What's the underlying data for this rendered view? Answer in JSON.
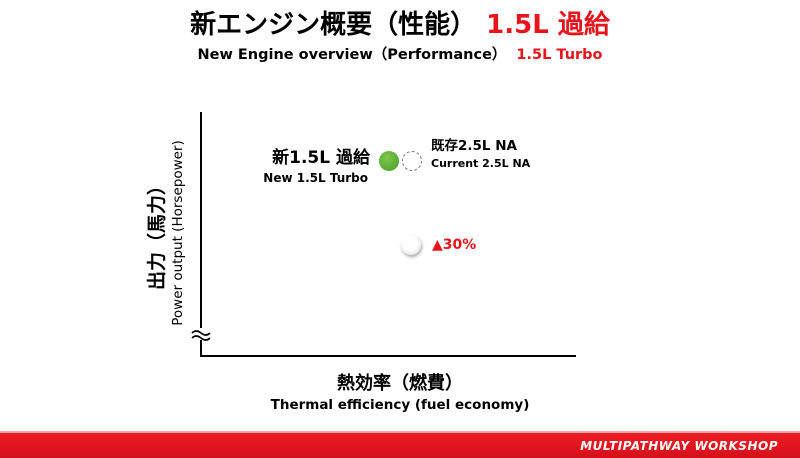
{
  "title": {
    "jp_main": "新エンジン概要（性能）",
    "jp_highlight": "1.5L 過給",
    "en_main": "New Engine overview（Performance）",
    "en_highlight": "1.5L Turbo",
    "highlight_color": "#e8141c"
  },
  "axes": {
    "y_label_jp": "出力（馬力）",
    "y_label_en": "Power output (Horsepower)",
    "x_label_jp": "熱効率（燃費）",
    "x_label_en": "Thermal efficiency (fuel economy)",
    "axis_break": true
  },
  "points": {
    "new_engine": {
      "label_jp": "新1.5L 過給",
      "label_en": "New 1.5L Turbo",
      "color": "#5ab034"
    },
    "current_engine": {
      "label_jp": "既存2.5L NA",
      "label_en": "Current 2.5L NA"
    },
    "improvement": {
      "label": "▲30%",
      "color": "#e8141c"
    }
  },
  "footer": {
    "brand": "Multipathway Workshop",
    "color": "#e8141c"
  }
}
